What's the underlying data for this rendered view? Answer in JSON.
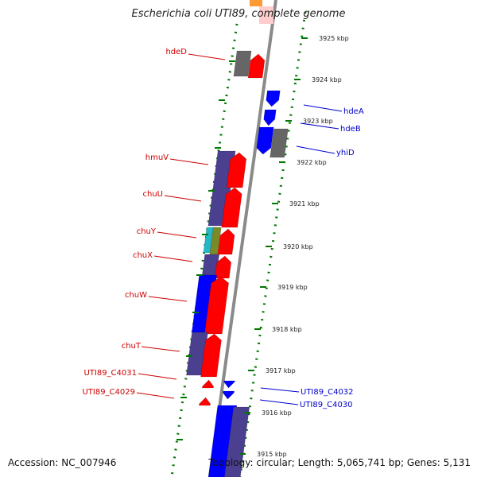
{
  "title": "Escherichia coli UTI89, complete genome",
  "footer": {
    "accession": "Accession: NC_007946",
    "stats": "Topology: circular; Length: 5,065,741 bp; Genes: 5,131"
  },
  "colors": {
    "forward_gene": "#ff0000",
    "reverse_gene": "#0000ff",
    "pseudo_gene": "#666666",
    "indigo_gene": "#4b3f8f",
    "ring_dots": "#007700",
    "label_forward": "#cc0000",
    "label_reverse": "#0000cc"
  },
  "genes": [
    {
      "id": "hdeD",
      "label": "hdeD",
      "strand": "+"
    },
    {
      "id": "hdeA",
      "label": "hdeA",
      "strand": "-"
    },
    {
      "id": "hdeB",
      "label": "hdeB",
      "strand": "-"
    },
    {
      "id": "yhiD",
      "label": "yhiD",
      "strand": "-"
    },
    {
      "id": "hmuV",
      "label": "hmuV",
      "strand": "+"
    },
    {
      "id": "chuU",
      "label": "chuU",
      "strand": "+"
    },
    {
      "id": "chuY",
      "label": "chuY",
      "strand": "+"
    },
    {
      "id": "chuX",
      "label": "chuX",
      "strand": "+"
    },
    {
      "id": "chuW",
      "label": "chuW",
      "strand": "+"
    },
    {
      "id": "chuT",
      "label": "chuT",
      "strand": "+"
    },
    {
      "id": "UTI89_C4031",
      "label": "UTI89_C4031",
      "strand": "+"
    },
    {
      "id": "UTI89_C4029",
      "label": "UTI89_C4029",
      "strand": "+"
    },
    {
      "id": "UTI89_C4032",
      "label": "UTI89_C4032",
      "strand": "-"
    },
    {
      "id": "UTI89_C4030",
      "label": "UTI89_C4030",
      "strand": "-"
    }
  ],
  "ticks": [
    "3925 kbp",
    "3924 kbp",
    "3923 kbp",
    "3922 kbp",
    "3921 kbp",
    "3920 kbp",
    "3919 kbp",
    "3918 kbp",
    "3917 kbp",
    "3916 kbp",
    "3915 kbp"
  ]
}
